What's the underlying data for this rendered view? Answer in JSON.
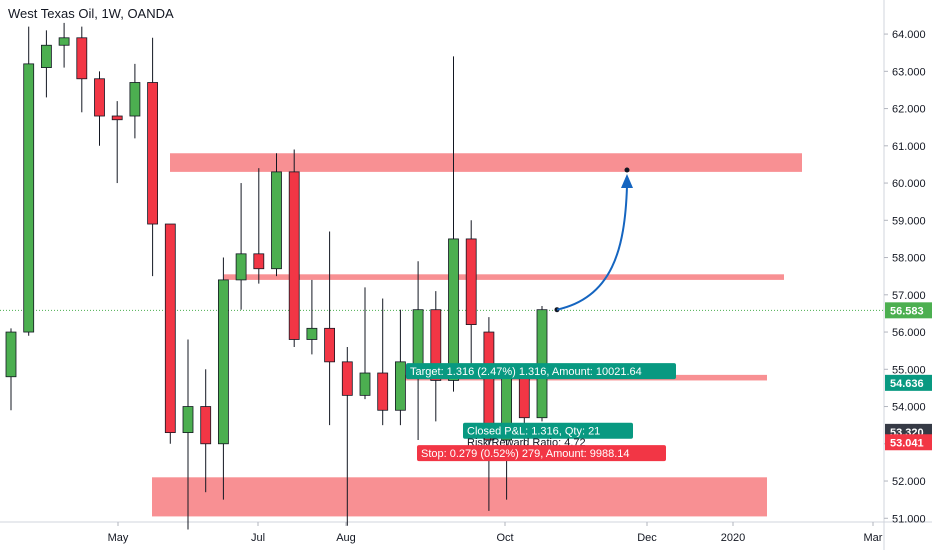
{
  "chart_data": {
    "type": "candlestick",
    "title": "West Texas Oil, 1W, OANDA",
    "xlabel": "",
    "ylabel": "",
    "ylim": [
      50.9,
      64.7
    ],
    "x_ticks": [
      "May",
      "Jul",
      "Aug",
      "Oct",
      "Dec",
      "2020",
      "Mar"
    ],
    "y_ticks": [
      "51.000",
      "52.000",
      "53.000",
      "54.000",
      "55.000",
      "56.000",
      "57.000",
      "58.000",
      "59.000",
      "60.000",
      "61.000",
      "62.000",
      "63.000",
      "64.000"
    ],
    "grid": false,
    "last_price": "56.583",
    "price_markers": [
      {
        "label": "56.583",
        "color": "#4caf50"
      },
      {
        "label": "54.636",
        "color": "#089981"
      },
      {
        "label": "53.320",
        "color": "#363a45"
      },
      {
        "label": "53.041",
        "color": "#f23645"
      }
    ],
    "candles": [
      {
        "o": 54.8,
        "h": 56.1,
        "l": 53.9,
        "c": 56.0
      },
      {
        "o": 56.0,
        "h": 64.2,
        "l": 55.9,
        "c": 63.2
      },
      {
        "o": 63.1,
        "h": 64.1,
        "l": 62.3,
        "c": 63.7
      },
      {
        "o": 63.7,
        "h": 64.3,
        "l": 63.1,
        "c": 63.9
      },
      {
        "o": 63.9,
        "h": 64.2,
        "l": 61.9,
        "c": 62.8
      },
      {
        "o": 62.8,
        "h": 63.0,
        "l": 61.0,
        "c": 61.8
      },
      {
        "o": 61.8,
        "h": 62.2,
        "l": 60.0,
        "c": 61.7
      },
      {
        "o": 61.8,
        "h": 63.2,
        "l": 61.2,
        "c": 62.7
      },
      {
        "o": 62.7,
        "h": 63.9,
        "l": 57.5,
        "c": 58.9
      },
      {
        "o": 58.9,
        "h": 58.9,
        "l": 53.0,
        "c": 53.3
      },
      {
        "o": 53.3,
        "h": 55.8,
        "l": 50.7,
        "c": 54.0
      },
      {
        "o": 54.0,
        "h": 55.0,
        "l": 51.7,
        "c": 53.0
      },
      {
        "o": 53.0,
        "h": 58.0,
        "l": 51.5,
        "c": 57.4
      },
      {
        "o": 57.4,
        "h": 60.0,
        "l": 56.6,
        "c": 58.1
      },
      {
        "o": 58.1,
        "h": 60.4,
        "l": 57.3,
        "c": 57.7
      },
      {
        "o": 57.7,
        "h": 60.8,
        "l": 57.5,
        "c": 60.3
      },
      {
        "o": 60.3,
        "h": 60.9,
        "l": 55.6,
        "c": 55.8
      },
      {
        "o": 55.8,
        "h": 57.4,
        "l": 55.4,
        "c": 56.1
      },
      {
        "o": 56.1,
        "h": 58.7,
        "l": 53.5,
        "c": 55.2
      },
      {
        "o": 55.2,
        "h": 55.6,
        "l": 50.8,
        "c": 54.3
      },
      {
        "o": 54.3,
        "h": 57.2,
        "l": 54.2,
        "c": 54.9
      },
      {
        "o": 54.9,
        "h": 56.9,
        "l": 53.5,
        "c": 53.9
      },
      {
        "o": 53.9,
        "h": 56.6,
        "l": 53.5,
        "c": 55.2
      },
      {
        "o": 54.9,
        "h": 57.9,
        "l": 53.1,
        "c": 56.6
      },
      {
        "o": 56.6,
        "h": 57.1,
        "l": 53.6,
        "c": 54.7
      },
      {
        "o": 54.7,
        "h": 63.4,
        "l": 54.4,
        "c": 58.5
      },
      {
        "o": 58.5,
        "h": 59.0,
        "l": 54.9,
        "c": 56.2
      },
      {
        "o": 56.0,
        "h": 56.4,
        "l": 51.2,
        "c": 53.1
      },
      {
        "o": 53.1,
        "h": 54.7,
        "l": 51.5,
        "c": 54.8
      },
      {
        "o": 54.9,
        "h": 55.0,
        "l": 52.9,
        "c": 53.7
      },
      {
        "o": 53.7,
        "h": 56.7,
        "l": 53.6,
        "c": 56.6
      }
    ],
    "zones": [
      {
        "y1": 60.3,
        "y2": 60.8
      },
      {
        "y1": 57.4,
        "y2": 57.55
      },
      {
        "y1": 54.7,
        "y2": 54.85
      },
      {
        "y1": 51.05,
        "y2": 52.1
      }
    ],
    "position": {
      "target_label": "Target: 1.316 (2.47%) 1.316, Amount: 10021.64",
      "closed_label": "Closed P&L: 1.316, Qty: 21",
      "ratio_label": "Risk/Reward Ratio: 4.72",
      "stop_label": "Stop: 0.279 (0.52%) 279, Amount: 9988.14"
    },
    "colors": {
      "up": "#4caf50",
      "down": "#f23645",
      "zone": "#f77c80",
      "arrow": "#1565c0",
      "target_box": "#089981",
      "stop_box": "#f23645",
      "last_price_line": "#4caf50"
    }
  }
}
